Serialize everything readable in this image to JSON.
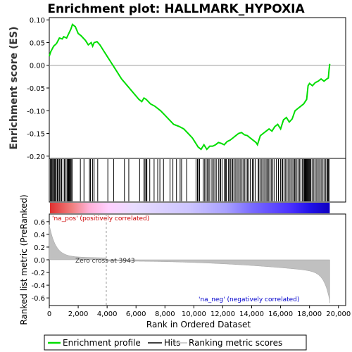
{
  "chart_data": {
    "type": "line",
    "title": "Enrichment plot: HALLMARK_HYPOXIA",
    "ylabel_top": "Enrichment score (ES)",
    "ylabel_bottom": "Ranked list metric (PreRanked)",
    "xlabel": "Rank in Ordered Dataset",
    "top_yticks": [
      "0.10",
      "0.05",
      "0.00",
      "-0.05",
      "-0.10",
      "-0.15",
      "-0.20"
    ],
    "top_ytick_values": [
      0.1,
      0.05,
      0.0,
      -0.05,
      -0.1,
      -0.15,
      -0.2
    ],
    "top_ylim": [
      -0.205,
      0.105
    ],
    "bottom_yticks": [
      "0.6",
      "0.4",
      "0.2",
      "0.0",
      "-0.2",
      "-0.4",
      "-0.6"
    ],
    "bottom_ytick_values": [
      0.6,
      0.4,
      0.2,
      0.0,
      -0.2,
      -0.4,
      -0.6
    ],
    "bottom_ylim": [
      -0.72,
      0.72
    ],
    "xticks": [
      "0",
      "2,000",
      "4,000",
      "6,000",
      "8,000",
      "10,000",
      "12,000",
      "14,000",
      "16,000",
      "18,000",
      "20,000"
    ],
    "xtick_values": [
      0,
      2000,
      4000,
      6000,
      8000,
      10000,
      12000,
      14000,
      16000,
      18000,
      20000
    ],
    "xlim": [
      0,
      20500
    ],
    "n_genes": 19400,
    "zero_cross": 3943,
    "zero_cross_label": "Zero cross at 3943",
    "pos_label": "'na_pos' (positively correlated)",
    "neg_label": "'na_neg' (negatively correlated)",
    "legend": [
      {
        "label": "Enrichment profile",
        "color": "#00dd00"
      },
      {
        "label": "Hits",
        "color": "#000000"
      },
      {
        "label": "Ranking metric scores",
        "color": "#c0c0c0"
      }
    ],
    "es_curve": {
      "x": [
        0,
        100,
        300,
        500,
        700,
        900,
        1000,
        1200,
        1350,
        1500,
        1600,
        1800,
        2000,
        2200,
        2500,
        2700,
        2900,
        3000,
        3100,
        3300,
        3500,
        3800,
        4000,
        4300,
        4600,
        5000,
        5400,
        5800,
        6200,
        6400,
        6550,
        6700,
        7000,
        7300,
        7700,
        8000,
        8300,
        8600,
        9000,
        9300,
        9600,
        9900,
        10100,
        10300,
        10500,
        10700,
        10900,
        11100,
        11300,
        11500,
        11700,
        11900,
        12100,
        12300,
        12500,
        12700,
        12900,
        13100,
        13300,
        13500,
        13700,
        13900,
        14100,
        14300,
        14400,
        14600,
        14800,
        15000,
        15200,
        15400,
        15600,
        15800,
        16000,
        16200,
        16400,
        16600,
        16800,
        17000,
        17200,
        17400,
        17600,
        17800,
        17900,
        18000,
        18200,
        18400,
        18600,
        18800,
        19000,
        19200,
        19300,
        19350,
        19400
      ],
      "y": [
        0.02,
        0.03,
        0.042,
        0.048,
        0.06,
        0.058,
        0.063,
        0.06,
        0.07,
        0.08,
        0.09,
        0.085,
        0.07,
        0.065,
        0.055,
        0.045,
        0.05,
        0.042,
        0.05,
        0.052,
        0.045,
        0.03,
        0.02,
        0.005,
        -0.01,
        -0.03,
        -0.045,
        -0.06,
        -0.075,
        -0.08,
        -0.072,
        -0.075,
        -0.085,
        -0.09,
        -0.1,
        -0.11,
        -0.12,
        -0.13,
        -0.135,
        -0.14,
        -0.15,
        -0.16,
        -0.17,
        -0.18,
        -0.185,
        -0.175,
        -0.185,
        -0.178,
        -0.178,
        -0.175,
        -0.17,
        -0.172,
        -0.175,
        -0.168,
        -0.165,
        -0.16,
        -0.155,
        -0.15,
        -0.148,
        -0.153,
        -0.155,
        -0.16,
        -0.165,
        -0.17,
        -0.175,
        -0.155,
        -0.15,
        -0.145,
        -0.14,
        -0.145,
        -0.135,
        -0.13,
        -0.14,
        -0.12,
        -0.115,
        -0.125,
        -0.118,
        -0.1,
        -0.095,
        -0.09,
        -0.085,
        -0.075,
        -0.045,
        -0.04,
        -0.045,
        -0.038,
        -0.035,
        -0.03,
        -0.035,
        -0.03,
        -0.028,
        -0.01,
        0.003
      ]
    },
    "hits": [
      80,
      130,
      180,
      240,
      300,
      360,
      420,
      480,
      560,
      620,
      700,
      780,
      850,
      950,
      1050,
      1150,
      1230,
      1290,
      1340,
      1380,
      1420,
      1470,
      1520,
      1580,
      2150,
      2400,
      2780,
      2850,
      3000,
      3100,
      3350,
      4050,
      4450,
      5200,
      5500,
      6250,
      6550,
      6620,
      6700,
      6750,
      6950,
      7250,
      7500,
      7650,
      7900,
      8350,
      8550,
      8800,
      9050,
      9150,
      9500,
      10150,
      10250,
      10350,
      10400,
      10650,
      10750,
      10850,
      10950,
      11000,
      11100,
      11250,
      11350,
      11450,
      11550,
      11700,
      11800,
      11850,
      11950,
      12100,
      12200,
      12250,
      12400,
      12450,
      12550,
      12650,
      12700,
      12800,
      12900,
      13000,
      13100,
      13200,
      13300,
      13400,
      13500,
      13600,
      13700,
      13800,
      13900,
      14050,
      14150,
      14250,
      14450,
      14500,
      14600,
      14700,
      14800,
      14900,
      15000,
      15100,
      15150,
      15250,
      15350,
      15450,
      15550,
      15700,
      15850,
      16000,
      16100,
      16150,
      16250,
      16350,
      16450,
      16550,
      16650,
      16750,
      16850,
      16950,
      17000,
      17100,
      17200,
      17300,
      17400,
      17500,
      17600,
      17650,
      17700,
      17750,
      17800,
      17850,
      17900,
      17950,
      18000,
      18050,
      18100,
      18200,
      18300,
      18400,
      18500,
      18600,
      18700,
      18800,
      18900,
      19000,
      19100,
      19200,
      19250,
      19300,
      19350
    ]
  }
}
